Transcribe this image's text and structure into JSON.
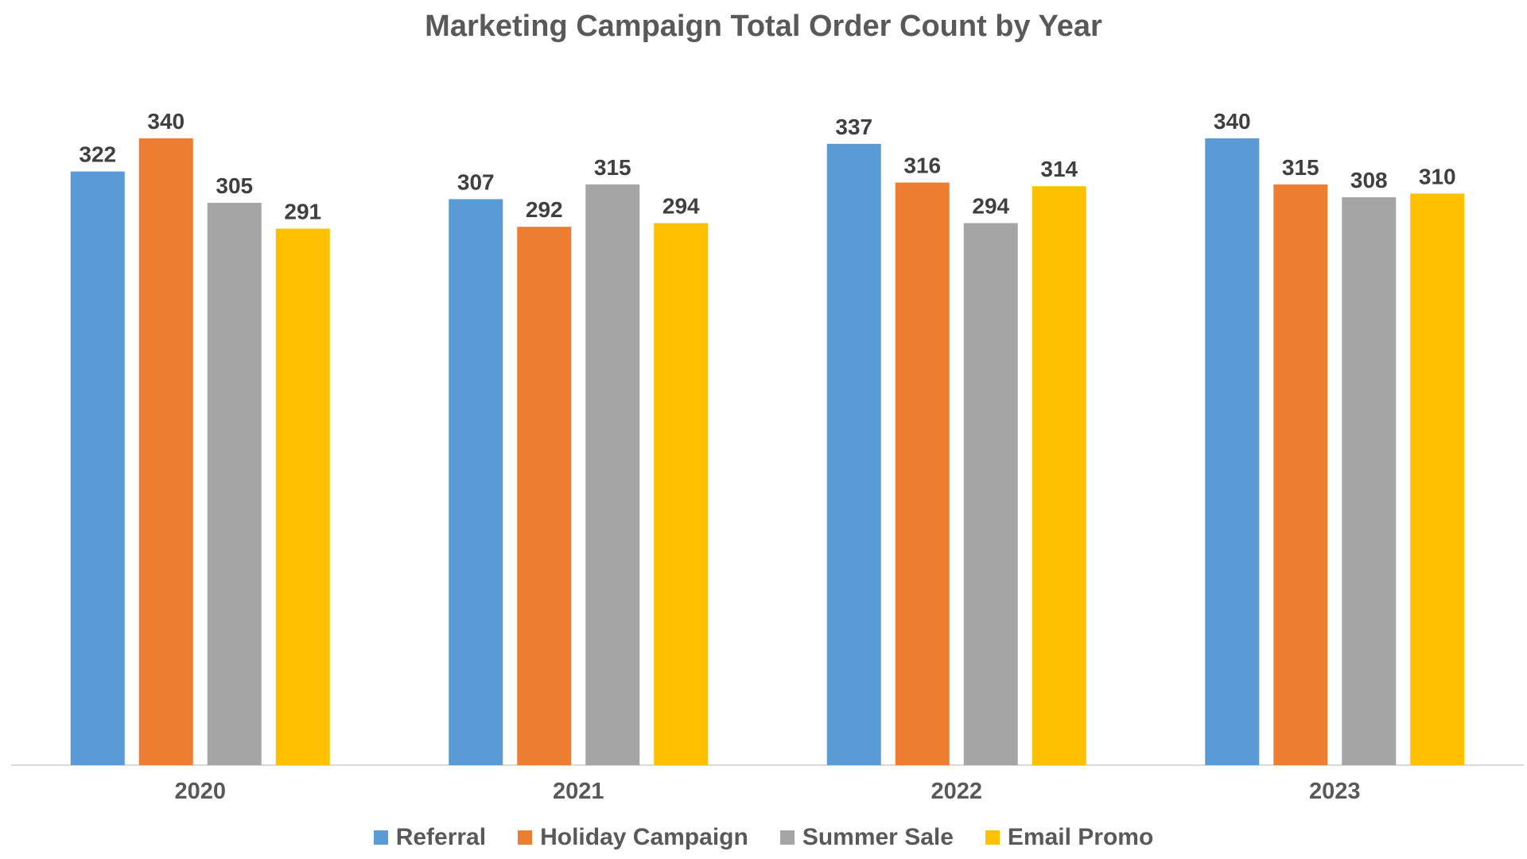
{
  "chart_data": {
    "type": "bar",
    "title": "Marketing Campaign Total Order Count by Year",
    "xlabel": "",
    "ylabel": "",
    "categories": [
      "2020",
      "2021",
      "2022",
      "2023"
    ],
    "series": [
      {
        "name": "Referral",
        "color": "#5B9BD5",
        "values": [
          322,
          307,
          337,
          340
        ]
      },
      {
        "name": "Holiday Campaign",
        "color": "#ED7D31",
        "values": [
          340,
          292,
          316,
          315
        ]
      },
      {
        "name": "Summer Sale",
        "color": "#A5A5A5",
        "values": [
          305,
          315,
          294,
          308
        ]
      },
      {
        "name": "Email Promo",
        "color": "#FFC000",
        "values": [
          291,
          294,
          314,
          310
        ]
      }
    ],
    "ylim": [
      0,
      340
    ],
    "grid": false,
    "legend_position": "bottom",
    "data_labels": true
  }
}
